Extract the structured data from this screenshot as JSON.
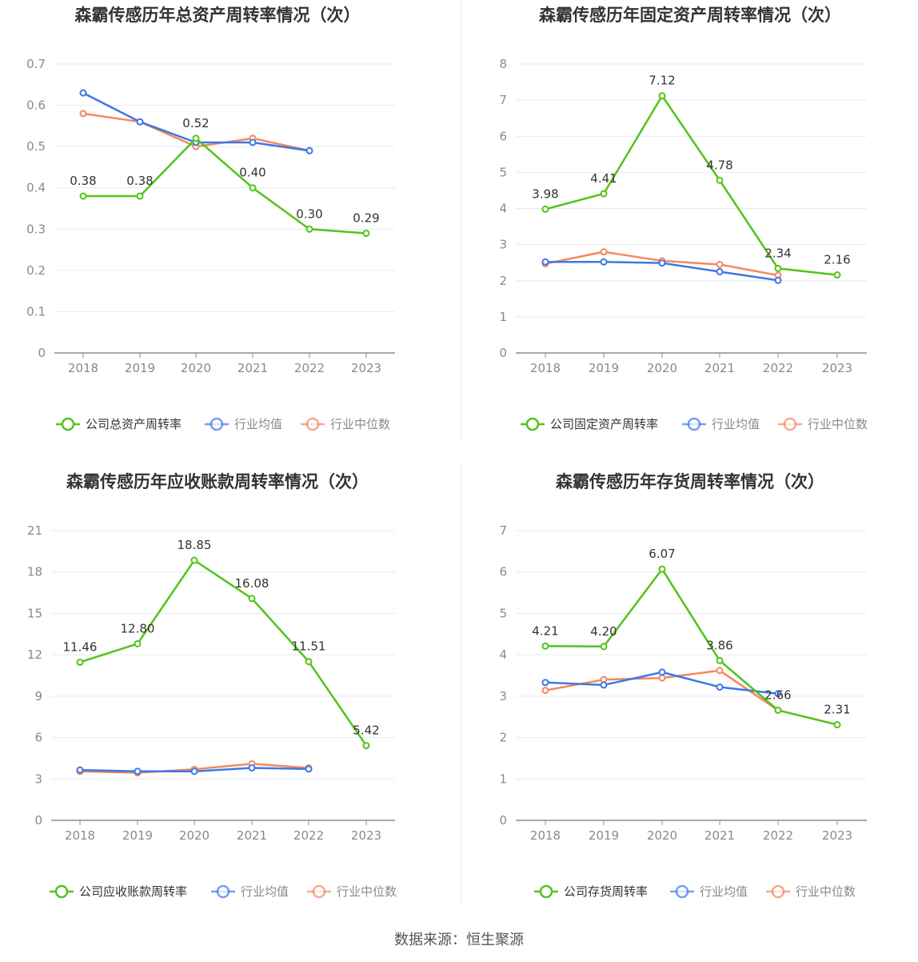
{
  "source_text": "数据来源：恒生聚源",
  "chart_data": [
    {
      "type": "line",
      "title": "森霸传感历年总资产周转率情况（次）",
      "categories": [
        "2018",
        "2019",
        "2020",
        "2021",
        "2022",
        "2023"
      ],
      "yticks": [
        "0",
        "0.1",
        "0.2",
        "0.3",
        "0.4",
        "0.5",
        "0.6",
        "0.7"
      ],
      "ylim": [
        0,
        0.7
      ],
      "series": [
        {
          "name": "公司总资产周转率",
          "color": "#52c41a",
          "values": [
            0.38,
            0.38,
            0.52,
            0.4,
            0.3,
            0.29
          ],
          "labels": [
            "0.38",
            "0.38",
            "0.52",
            "0.40",
            "0.30",
            "0.29"
          ]
        },
        {
          "name": "行业均值",
          "color": "#3d78e6",
          "values": [
            0.63,
            0.56,
            0.51,
            0.51,
            0.49,
            null
          ]
        },
        {
          "name": "行业中位数",
          "color": "#f5875f",
          "values": [
            0.58,
            0.56,
            0.5,
            0.52,
            0.49,
            null
          ]
        }
      ]
    },
    {
      "type": "line",
      "title": "森霸传感历年固定资产周转率情况（次）",
      "categories": [
        "2018",
        "2019",
        "2020",
        "2021",
        "2022",
        "2023"
      ],
      "yticks": [
        "0",
        "1",
        "2",
        "3",
        "4",
        "5",
        "6",
        "7",
        "8"
      ],
      "ylim": [
        0,
        8
      ],
      "series": [
        {
          "name": "公司固定资产周转率",
          "color": "#52c41a",
          "values": [
            3.98,
            4.41,
            7.12,
            4.78,
            2.34,
            2.16
          ],
          "labels": [
            "3.98",
            "4.41",
            "7.12",
            "4.78",
            "2.34",
            "2.16"
          ]
        },
        {
          "name": "行业均值",
          "color": "#3d78e6",
          "values": [
            2.52,
            2.52,
            2.49,
            2.25,
            2.01,
            null
          ]
        },
        {
          "name": "行业中位数",
          "color": "#f5875f",
          "values": [
            2.47,
            2.8,
            2.55,
            2.45,
            2.15,
            null
          ]
        }
      ]
    },
    {
      "type": "line",
      "title": "森霸传感历年应收账款周转率情况（次）",
      "categories": [
        "2018",
        "2019",
        "2020",
        "2021",
        "2022",
        "2023"
      ],
      "yticks": [
        "0",
        "3",
        "6",
        "9",
        "12",
        "15",
        "18",
        "21"
      ],
      "ylim": [
        0,
        21
      ],
      "series": [
        {
          "name": "公司应收账款周转率",
          "color": "#52c41a",
          "values": [
            11.46,
            12.8,
            18.85,
            16.08,
            11.51,
            5.42
          ],
          "labels": [
            "11.46",
            "12.80",
            "18.85",
            "16.08",
            "11.51",
            "5.42"
          ]
        },
        {
          "name": "行业均值",
          "color": "#3d78e6",
          "values": [
            3.65,
            3.55,
            3.55,
            3.8,
            3.72,
            null
          ]
        },
        {
          "name": "行业中位数",
          "color": "#f5875f",
          "values": [
            3.55,
            3.45,
            3.7,
            4.1,
            3.8,
            null
          ]
        }
      ]
    },
    {
      "type": "line",
      "title": "森霸传感历年存货周转率情况（次）",
      "categories": [
        "2018",
        "2019",
        "2020",
        "2021",
        "2022",
        "2023"
      ],
      "yticks": [
        "0",
        "1",
        "2",
        "3",
        "4",
        "5",
        "6",
        "7"
      ],
      "ylim": [
        0,
        7
      ],
      "series": [
        {
          "name": "公司存货周转率",
          "color": "#52c41a",
          "values": [
            4.21,
            4.2,
            6.07,
            3.86,
            2.66,
            2.31
          ],
          "labels": [
            "4.21",
            "4.20",
            "6.07",
            "3.86",
            "2.66",
            "2.31"
          ]
        },
        {
          "name": "行业均值",
          "color": "#3d78e6",
          "values": [
            3.33,
            3.27,
            3.58,
            3.22,
            3.06,
            null
          ]
        },
        {
          "name": "行业中位数",
          "color": "#f5875f",
          "values": [
            3.14,
            3.4,
            3.44,
            3.62,
            2.66,
            null
          ]
        }
      ]
    }
  ]
}
